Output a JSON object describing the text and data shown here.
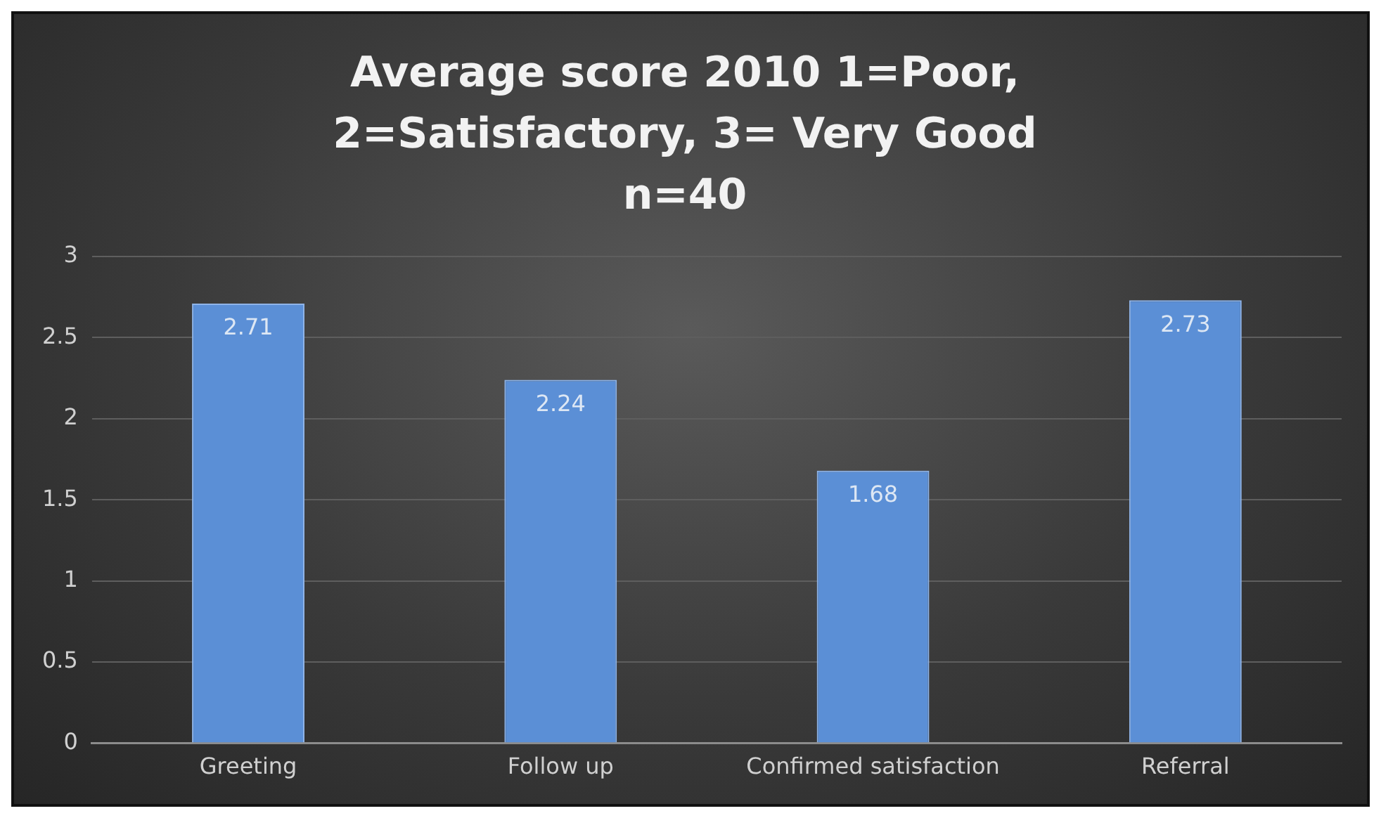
{
  "chart_data": {
    "type": "bar",
    "title": "Average score 2010 1=Poor, 2=Satisfactory, 3= Very Good n=40",
    "categories": [
      "Greeting",
      "Follow up",
      "Confirmed satisfaction",
      "Referral"
    ],
    "values": [
      2.71,
      2.24,
      1.68,
      2.73
    ],
    "color": "#5b8fd6",
    "ylim": [
      0,
      3
    ],
    "yticks": [
      0,
      0.5,
      1,
      1.5,
      2,
      2.5,
      3
    ],
    "grid": "y",
    "data_labels": true
  }
}
